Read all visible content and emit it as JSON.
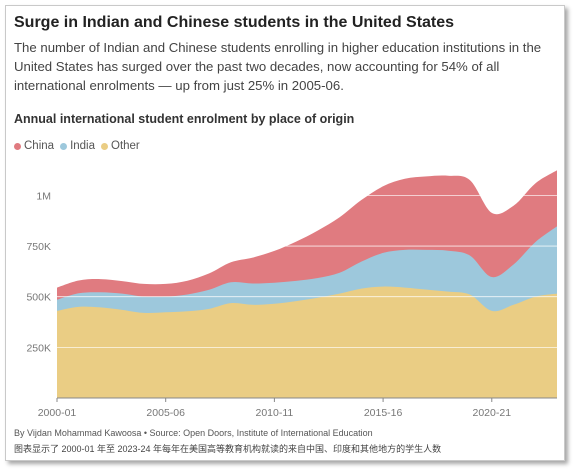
{
  "header": {
    "title": "Surge in Indian and Chinese students in the United States",
    "subtitle": "The number of Indian and Chinese students enrolling in higher education institutions in the United States has surged over the past two decades, now accounting for 54% of all international enrolments — up from just 25% in 2005-06."
  },
  "footer": {
    "credit": "By Vijdan Mohammad Kawoosa • Source: Open Doors, Institute of International Education",
    "caption": "图表显示了 2000-01 年至 2023-24 年每年在美国高等教育机构就读的来自中国、印度和其他地方的学生人数"
  },
  "colors": {
    "china": "#e07b80",
    "india": "#9dc8dc",
    "other": "#eacd84",
    "axis": "#777777",
    "grid": "#ffffff"
  },
  "chart_data": {
    "type": "area",
    "stacked": true,
    "title": "Annual international student enrolment by place of origin",
    "x": [
      "2000-01",
      "2001-02",
      "2002-03",
      "2003-04",
      "2004-05",
      "2005-06",
      "2006-07",
      "2007-08",
      "2008-09",
      "2009-10",
      "2010-11",
      "2011-12",
      "2012-13",
      "2013-14",
      "2014-15",
      "2015-16",
      "2016-17",
      "2017-18",
      "2018-19",
      "2019-20",
      "2020-21",
      "2021-22",
      "2022-23",
      "2023-24"
    ],
    "x_tick_labels": [
      "2000-01",
      "2005-06",
      "2010-11",
      "2015-16",
      "2020-21"
    ],
    "yticks": [
      250000,
      500000,
      750000,
      1000000
    ],
    "ytick_labels": [
      "250K",
      "500K",
      "750K",
      "1M"
    ],
    "ylim": [
      0,
      1150000
    ],
    "legend_position": "top-left",
    "series": [
      {
        "name": "Other",
        "key": "other",
        "values": [
          430000,
          450000,
          447000,
          435000,
          420000,
          423000,
          428000,
          440000,
          468000,
          460000,
          465000,
          478000,
          495000,
          515000,
          540000,
          550000,
          545000,
          535000,
          525000,
          510000,
          430000,
          460000,
          500000,
          515000
        ]
      },
      {
        "name": "India",
        "key": "india",
        "values": [
          55000,
          67000,
          75000,
          80000,
          80000,
          77000,
          83000,
          94000,
          103000,
          105000,
          104000,
          100000,
          97000,
          103000,
          133000,
          166000,
          186000,
          196000,
          202000,
          193000,
          167000,
          199000,
          269000,
          332000
        ]
      },
      {
        "name": "China",
        "key": "china",
        "values": [
          60000,
          63000,
          65000,
          62000,
          63000,
          63000,
          68000,
          81000,
          99000,
          128000,
          157000,
          194000,
          235000,
          274000,
          304000,
          329000,
          351000,
          363000,
          370000,
          372000,
          317000,
          290000,
          290000,
          277000
        ]
      }
    ]
  }
}
